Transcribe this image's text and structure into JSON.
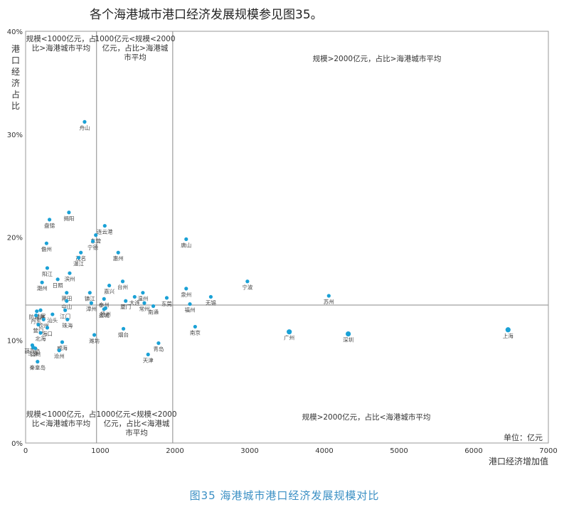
{
  "heading": "各个海港城市港口经济发展规模参见图35。",
  "caption": "图35 海港城市港口经济发展规模对比",
  "colors": {
    "point": "#1aa1d6",
    "axis": "#999999",
    "ref_line": "#888888",
    "text": "#333333",
    "caption": "#3a8fc4"
  },
  "chart_data": {
    "type": "scatter",
    "title": "",
    "xlabel": "港口经济增加值",
    "ylabel": "港口经济占比",
    "unit_label": "单位：亿元",
    "xlim": [
      0,
      7000
    ],
    "ylim": [
      0,
      40
    ],
    "x_ticks": [
      "0",
      "1000",
      "2000",
      "3000",
      "4000",
      "5000",
      "6000",
      "7000"
    ],
    "y_ticks": [
      "0%",
      "10%",
      "20%",
      "30%",
      "40%"
    ],
    "x_tick_values": [
      0,
      1000,
      2000,
      3000,
      4000,
      5000,
      6000,
      7000
    ],
    "y_tick_values": [
      0,
      10,
      20,
      30,
      40
    ],
    "reference_lines": {
      "x": [
        950,
        1970
      ],
      "y": 13.4
    },
    "quadrant_labels": [
      {
        "text": [
          "规模<1000亿元，占",
          "比>海港城市平均"
        ]
      },
      {
        "text": [
          "1000亿元<规模<2000",
          "亿元，占比>海港城",
          "市平均"
        ]
      },
      {
        "text": [
          "规模>2000亿元，占比>海港城市平均"
        ]
      },
      {
        "text": [
          "规模<1000亿元，占",
          "比<海港城市平均"
        ]
      },
      {
        "text": [
          "1000亿元<规模<2000",
          "亿元，占比<海港城",
          "市平均"
        ]
      },
      {
        "text": [
          "规模>2000亿元，占比<海港城市平均"
        ]
      }
    ],
    "points": [
      {
        "label": "舟山",
        "x": 790,
        "y": 31.2
      },
      {
        "label": "揭阳",
        "x": 580,
        "y": 22.4
      },
      {
        "label": "盘锦",
        "x": 320,
        "y": 21.7
      },
      {
        "label": "儋州",
        "x": 280,
        "y": 19.4
      },
      {
        "label": "连云港",
        "x": 1060,
        "y": 21.1
      },
      {
        "label": "东营",
        "x": 940,
        "y": 20.2
      },
      {
        "label": "宁德",
        "x": 900,
        "y": 19.6
      },
      {
        "label": "茂名",
        "x": 740,
        "y": 18.5
      },
      {
        "label": "湛江",
        "x": 710,
        "y": 18.0
      },
      {
        "label": "惠州",
        "x": 1240,
        "y": 18.5
      },
      {
        "label": "唐山",
        "x": 2150,
        "y": 19.8
      },
      {
        "label": "阳江",
        "x": 290,
        "y": 17.0
      },
      {
        "label": "日照",
        "x": 430,
        "y": 15.9
      },
      {
        "label": "滨州",
        "x": 590,
        "y": 16.5
      },
      {
        "label": "潮州",
        "x": 220,
        "y": 15.6
      },
      {
        "label": "嘉兴",
        "x": 1120,
        "y": 15.3
      },
      {
        "label": "台州",
        "x": 1300,
        "y": 15.7
      },
      {
        "label": "镇江",
        "x": 860,
        "y": 14.6
      },
      {
        "label": "泰州",
        "x": 1050,
        "y": 14.0
      },
      {
        "label": "温州",
        "x": 1570,
        "y": 14.6
      },
      {
        "label": "大连",
        "x": 1460,
        "y": 14.2
      },
      {
        "label": "东莞",
        "x": 1890,
        "y": 14.1
      },
      {
        "label": "泉州",
        "x": 2150,
        "y": 15.0
      },
      {
        "label": "宁波",
        "x": 2970,
        "y": 15.7
      },
      {
        "label": "无锡",
        "x": 2480,
        "y": 14.2
      },
      {
        "label": "苏州",
        "x": 4060,
        "y": 14.3
      },
      {
        "label": "莆田",
        "x": 550,
        "y": 14.6
      },
      {
        "label": "厦门",
        "x": 1340,
        "y": 13.8
      },
      {
        "label": "常州",
        "x": 1590,
        "y": 13.6
      },
      {
        "label": "中山",
        "x": 550,
        "y": 13.8
      },
      {
        "label": "漳州",
        "x": 880,
        "y": 13.6
      },
      {
        "label": "扬州",
        "x": 1070,
        "y": 13.1
      },
      {
        "label": "盐城",
        "x": 1050,
        "y": 13.0
      },
      {
        "label": "南通",
        "x": 1710,
        "y": 13.3
      },
      {
        "label": "福州",
        "x": 2200,
        "y": 13.5
      },
      {
        "label": "防城港",
        "x": 150,
        "y": 12.8
      },
      {
        "label": "汕尾",
        "x": 200,
        "y": 12.9
      },
      {
        "label": "江门",
        "x": 530,
        "y": 12.9
      },
      {
        "label": "丹东",
        "x": 140,
        "y": 12.4
      },
      {
        "label": "钦州",
        "x": 240,
        "y": 12.0
      },
      {
        "label": "汕头",
        "x": 360,
        "y": 12.5
      },
      {
        "label": "珠海",
        "x": 560,
        "y": 12.0
      },
      {
        "label": "营口",
        "x": 170,
        "y": 11.5
      },
      {
        "label": "海口",
        "x": 290,
        "y": 11.2
      },
      {
        "label": "北海",
        "x": 200,
        "y": 10.7
      },
      {
        "label": "潍坊",
        "x": 920,
        "y": 10.5
      },
      {
        "label": "烟台",
        "x": 1310,
        "y": 11.1
      },
      {
        "label": "南京",
        "x": 2270,
        "y": 11.3
      },
      {
        "label": "广州",
        "x": 3530,
        "y": 10.8
      },
      {
        "label": "深圳",
        "x": 4320,
        "y": 10.6
      },
      {
        "label": "上海",
        "x": 6460,
        "y": 11.0
      },
      {
        "label": "葫芦岛",
        "x": 90,
        "y": 9.5
      },
      {
        "label": "威海",
        "x": 490,
        "y": 9.8
      },
      {
        "label": "青岛",
        "x": 1780,
        "y": 9.7
      },
      {
        "label": "三亚",
        "x": 100,
        "y": 9.3
      },
      {
        "label": "锦州",
        "x": 130,
        "y": 9.2
      },
      {
        "label": "沧州",
        "x": 450,
        "y": 9.0
      },
      {
        "label": "天津",
        "x": 1640,
        "y": 8.6
      },
      {
        "label": "秦皇岛",
        "x": 160,
        "y": 7.9
      }
    ]
  }
}
